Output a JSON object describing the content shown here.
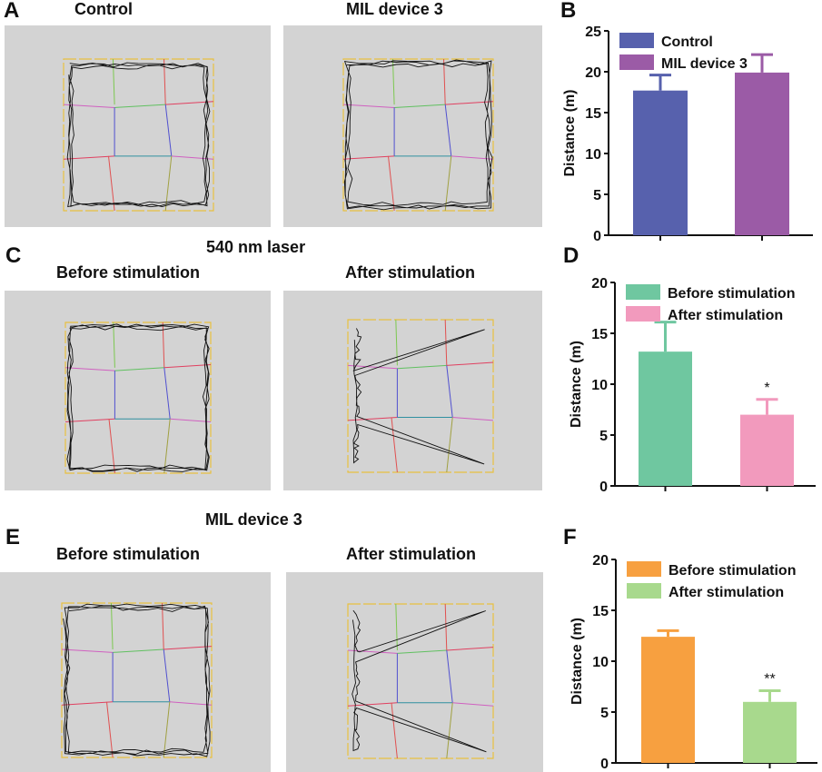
{
  "panels": {
    "A": {
      "letter": "A",
      "left_title": "Control",
      "right_title": "MIL device 3"
    },
    "B": {
      "letter": "B"
    },
    "C": {
      "letter": "C",
      "header": "540 nm laser",
      "left_title": "Before stimulation",
      "right_title": "After stimulation"
    },
    "D": {
      "letter": "D"
    },
    "E": {
      "letter": "E",
      "header": "MIL  device 3",
      "left_title": "Before stimulation",
      "right_title": "After stimulation"
    },
    "F": {
      "letter": "F"
    }
  },
  "chart_data": [
    {
      "type": "bar",
      "panel": "B",
      "ylabel": "Distance (m)",
      "ylim": [
        0,
        25
      ],
      "yticks": [
        0,
        5,
        10,
        15,
        20,
        25
      ],
      "categories": [
        "Control",
        "MIL device 3"
      ],
      "values": [
        17.7,
        19.9
      ],
      "error": [
        1.9,
        2.2
      ],
      "colors": [
        "#5761ad",
        "#9b5ba6"
      ],
      "significance": [
        "",
        ""
      ],
      "legend": "top-left"
    },
    {
      "type": "bar",
      "panel": "D",
      "ylabel": "Distance (m)",
      "ylim": [
        0,
        20
      ],
      "yticks": [
        0,
        5,
        10,
        15,
        20
      ],
      "categories": [
        "Before stimulation",
        "After stimulation"
      ],
      "values": [
        13.2,
        7.0
      ],
      "error": [
        2.9,
        1.5
      ],
      "colors": [
        "#6fc7a0",
        "#f29abd"
      ],
      "significance": [
        "",
        "*"
      ],
      "legend": "top-left"
    },
    {
      "type": "bar",
      "panel": "F",
      "ylabel": "Distance (m)",
      "ylim": [
        0,
        20
      ],
      "yticks": [
        0,
        5,
        10,
        15,
        20
      ],
      "categories": [
        "Before stimulation",
        "After stimulation"
      ],
      "values": [
        12.4,
        6.0
      ],
      "error": [
        0.6,
        1.1
      ],
      "colors": [
        "#f7a040",
        "#a8d98d"
      ],
      "significance": [
        "",
        "**"
      ],
      "legend": "top-left"
    }
  ]
}
